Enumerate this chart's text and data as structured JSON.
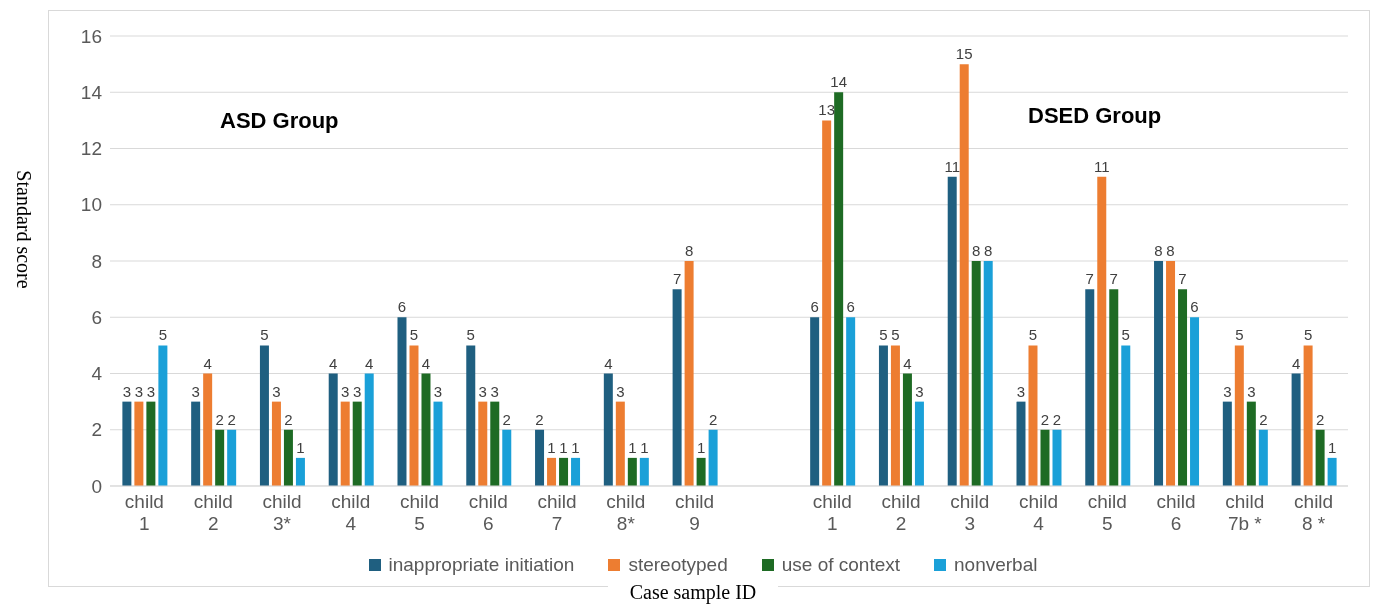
{
  "chart_data": {
    "type": "bar",
    "ylabel": "Standard score",
    "xlabel": "Case sample ID",
    "annotations": [
      "ASD Group",
      "DSED Group"
    ],
    "categories": [
      "child 1",
      "child 2",
      "child 3*",
      "child 4",
      "child 5",
      "child 6",
      "child 7",
      "child 8*",
      "child 9",
      null,
      "child 1",
      "child 2",
      "child 3",
      "child 4",
      "child 5",
      "child 6",
      "child 7b *",
      "child 8 *"
    ],
    "series": [
      {
        "name": "inappropriate initiation",
        "color": "#1f5f80",
        "values": [
          3,
          3,
          5,
          4,
          6,
          5,
          2,
          4,
          7,
          null,
          6,
          5,
          11,
          3,
          7,
          8,
          3,
          4
        ]
      },
      {
        "name": "stereotyped",
        "color": "#ed7d31",
        "values": [
          3,
          4,
          3,
          3,
          5,
          3,
          1,
          3,
          8,
          null,
          13,
          5,
          15,
          5,
          11,
          8,
          5,
          5
        ]
      },
      {
        "name": "use of context",
        "color": "#1e6b24",
        "values": [
          3,
          2,
          2,
          3,
          4,
          3,
          1,
          1,
          1,
          null,
          14,
          4,
          8,
          2,
          7,
          7,
          3,
          2
        ]
      },
      {
        "name": "nonverbal",
        "color": "#1aa0d8",
        "values": [
          5,
          2,
          1,
          4,
          3,
          2,
          1,
          1,
          2,
          null,
          6,
          3,
          8,
          2,
          5,
          6,
          2,
          1
        ]
      }
    ],
    "ylim": [
      0,
      16
    ],
    "yticks": [
      0,
      2,
      4,
      6,
      8,
      10,
      12,
      14,
      16
    ],
    "grid": "y",
    "legend": "bottom",
    "data_labels": true
  }
}
